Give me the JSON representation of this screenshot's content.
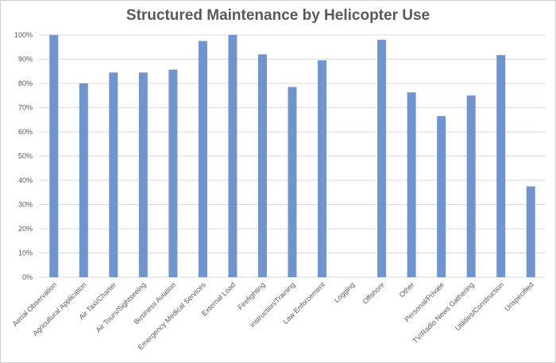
{
  "chart_data": {
    "type": "bar",
    "title": "Structured Maintenance by Helicopter Use",
    "xlabel": "",
    "ylabel": "",
    "categories": [
      "Aerial Observation",
      "Agricultural Application",
      "Air Taxi/Charter",
      "Air Tours/Sightseeing",
      "Business Aviation",
      "Emergency Medical Services",
      "External Load",
      "Firefighting",
      "Instruction/Training",
      "Law Enforcement",
      "Logging",
      "Offshore",
      "Other",
      "Personal/Private",
      "TV/Radio News Gathering",
      "Utilities/Construction",
      "Unspecified"
    ],
    "values": [
      1.0,
      0.8,
      0.845,
      0.845,
      0.857,
      0.975,
      1.0,
      0.92,
      0.785,
      0.895,
      0,
      0.98,
      0.763,
      0.665,
      0.75,
      0.917,
      0.375
    ],
    "ylim": [
      0,
      1
    ],
    "yticks": [
      0,
      0.1,
      0.2,
      0.3,
      0.4,
      0.5,
      0.6,
      0.7,
      0.8,
      0.9,
      1.0
    ],
    "ytick_labels": [
      "0%",
      "10%",
      "20%",
      "30%",
      "40%",
      "50%",
      "60%",
      "70%",
      "80%",
      "90%",
      "100%"
    ],
    "grid": true,
    "legend": "none",
    "colors": {
      "bar": "#7094cd",
      "grid": "#d9d9d9",
      "text": "#595959"
    }
  }
}
